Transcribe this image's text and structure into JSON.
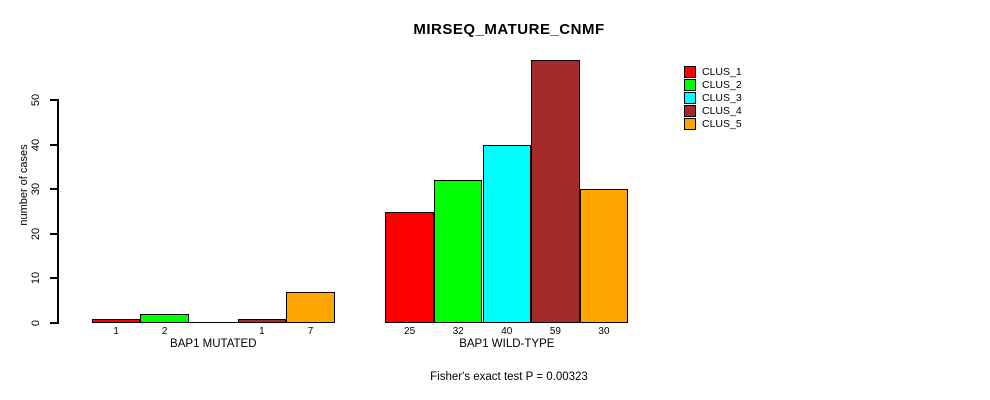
{
  "chart_data": {
    "type": "bar",
    "title": "MIRSEQ_MATURE_CNMF",
    "ylabel": "number of cases",
    "xlabel": "",
    "ylim": [
      0,
      59
    ],
    "yticks": [
      "0",
      "10",
      "20",
      "30",
      "40",
      "50"
    ],
    "ytick_values": [
      0,
      10,
      20,
      30,
      40,
      50
    ],
    "grid": false,
    "legend_position": "top-right",
    "legend": [
      {
        "label": "CLUS_1",
        "color": "#ff0000"
      },
      {
        "label": "CLUS_2",
        "color": "#00ff00"
      },
      {
        "label": "CLUS_3",
        "color": "#00ffff"
      },
      {
        "label": "CLUS_4",
        "color": "#a52a2a"
      },
      {
        "label": "CLUS_5",
        "color": "#ffa500"
      }
    ],
    "series_colors": [
      "#ff0000",
      "#00ff00",
      "#00ffff",
      "#a52a2a",
      "#ffa500"
    ],
    "groups": [
      {
        "label": "BAP1 MUTATED",
        "values": [
          1,
          2,
          0,
          1,
          7
        ],
        "bar_labels": [
          "1",
          "2",
          "",
          "1",
          "7"
        ]
      },
      {
        "label": "BAP1 WILD-TYPE",
        "values": [
          25,
          32,
          40,
          59,
          30
        ],
        "bar_labels": [
          "25",
          "32",
          "40",
          "59",
          "30"
        ]
      }
    ],
    "annotation": "Fisher's exact test P = 0.00323"
  }
}
